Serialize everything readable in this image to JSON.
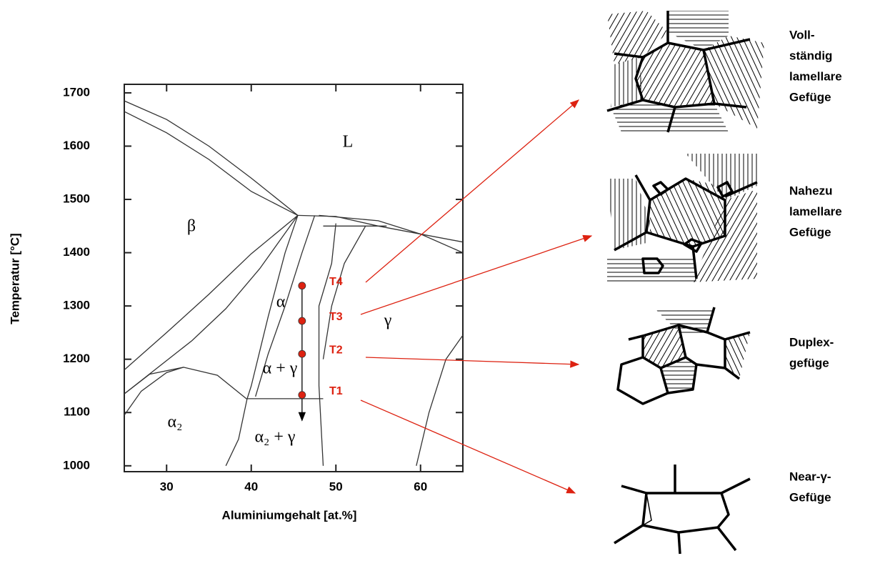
{
  "chart_data": {
    "type": "line",
    "xlabel": "Aluminiumgehalt  [at.%]",
    "ylabel": "Temperatur [°C]",
    "xlim": [
      25,
      65
    ],
    "ylim": [
      989,
      1716
    ],
    "xticks": [
      30,
      40,
      50,
      60
    ],
    "yticks": [
      1000,
      1100,
      1200,
      1300,
      1400,
      1500,
      1600,
      1700
    ],
    "phase_labels": [
      "L",
      "β",
      "α",
      "γ",
      "α + γ",
      "α₂",
      "α₂ + γ"
    ],
    "boundaries": [
      {
        "x": [
          25,
          30,
          35,
          40,
          45.5
        ],
        "y": [
          1685,
          1650,
          1600,
          1540,
          1470
        ]
      },
      {
        "x": [
          25,
          30,
          35,
          40,
          45.5
        ],
        "y": [
          1665,
          1625,
          1575,
          1515,
          1470
        ]
      },
      {
        "x": [
          25,
          30,
          35,
          40,
          45.5
        ],
        "y": [
          1180,
          1250,
          1322,
          1398,
          1470
        ]
      },
      {
        "x": [
          25,
          29,
          33,
          37,
          41,
          45.5
        ],
        "y": [
          1135,
          1185,
          1235,
          1295,
          1370,
          1470
        ]
      },
      {
        "x": [
          45.5,
          44,
          42,
          40,
          39.5
        ],
        "y": [
          1470,
          1400,
          1280,
          1150,
          1125
        ]
      },
      {
        "x": [
          47.5,
          46,
          44,
          42,
          40.5
        ],
        "y": [
          1470,
          1400,
          1300,
          1210,
          1130
        ]
      },
      {
        "x": [
          50,
          49.5,
          48,
          48,
          48.5
        ],
        "y": [
          1455,
          1380,
          1300,
          1150,
          1000
        ]
      },
      {
        "x": [
          53.5,
          51,
          49.5,
          48.5
        ],
        "y": [
          1450,
          1380,
          1300,
          1200
        ]
      },
      {
        "x": [
          39.5,
          48.5
        ],
        "y": [
          1126,
          1126
        ]
      },
      {
        "x": [
          25,
          28,
          32,
          36,
          39.5
        ],
        "y": [
          1135,
          1172,
          1185,
          1170,
          1125
        ]
      },
      {
        "x": [
          25,
          27,
          30,
          32
        ],
        "y": [
          1095,
          1140,
          1175,
          1185
        ]
      },
      {
        "x": [
          39.5,
          38.5,
          37
        ],
        "y": [
          1125,
          1050,
          1000
        ]
      },
      {
        "x": [
          45.5,
          50,
          55,
          65
        ],
        "y": [
          1470,
          1468,
          1450,
          1420
        ]
      },
      {
        "x": [
          48,
          55,
          60,
          65
        ],
        "y": [
          1470,
          1460,
          1435,
          1400
        ]
      },
      {
        "x": [
          48.5,
          56
        ],
        "y": [
          1450,
          1450
        ]
      },
      {
        "x": [
          59.5,
          61,
          63,
          65
        ],
        "y": [
          1000,
          1100,
          1200,
          1245
        ]
      }
    ],
    "path": {
      "x": [
        46,
        46,
        46,
        46
      ],
      "y": [
        1338,
        1272,
        1210,
        1133
      ],
      "labels": [
        "T4",
        "T3",
        "T2",
        "T1"
      ],
      "color": "#dd2211",
      "arrow_to": 1085
    }
  },
  "microstructures": [
    {
      "lines": [
        "Voll-",
        "ständig",
        "lamellare",
        "Gefüge"
      ]
    },
    {
      "lines": [
        "Nahezu",
        "lamellare",
        "Gefüge"
      ]
    },
    {
      "lines": [
        "Duplex-",
        "gefüge"
      ]
    },
    {
      "lines": [
        "Near-γ-",
        "Gefüge"
      ]
    }
  ]
}
